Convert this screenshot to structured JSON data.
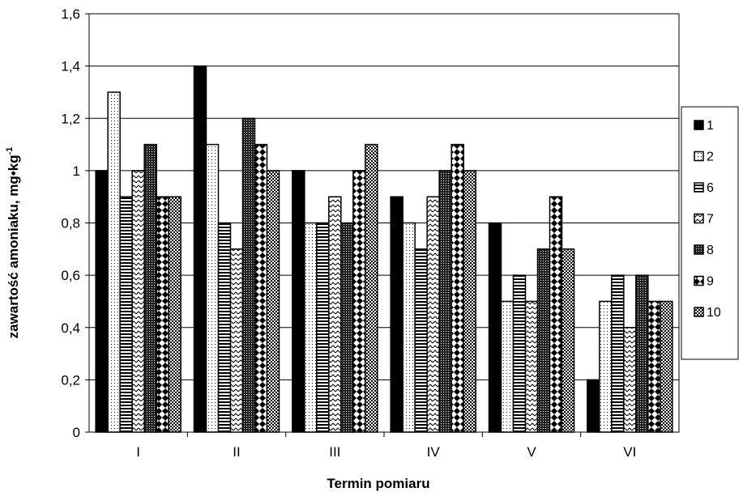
{
  "chart_data": {
    "type": "bar",
    "title": "",
    "xlabel": "Termin pomiaru",
    "ylabel": "zawartość amoniaku, mg•kg",
    "ylabel_superscript": "-1",
    "categories": [
      "I",
      "II",
      "III",
      "IV",
      "V",
      "VI"
    ],
    "y_ticks": [
      "0",
      "0,2",
      "0,4",
      "0,6",
      "0,8",
      "1",
      "1,2",
      "1,4",
      "1,6"
    ],
    "ylim": [
      0,
      1.6
    ],
    "grid": true,
    "legend_position": "right",
    "series": [
      {
        "name": "1",
        "pattern": "solid-black",
        "values": [
          1.0,
          1.4,
          1.0,
          0.9,
          0.8,
          0.2
        ]
      },
      {
        "name": "2",
        "pattern": "dots",
        "values": [
          1.3,
          1.1,
          0.8,
          0.8,
          0.5,
          0.5
        ]
      },
      {
        "name": "6",
        "pattern": "horizontal-lines",
        "values": [
          0.9,
          0.8,
          0.8,
          0.7,
          0.6,
          0.6
        ]
      },
      {
        "name": "7",
        "pattern": "zigzag",
        "values": [
          1.0,
          0.7,
          0.9,
          0.9,
          0.5,
          0.4
        ]
      },
      {
        "name": "8",
        "pattern": "dense-grid",
        "values": [
          1.1,
          1.2,
          0.8,
          1.0,
          0.7,
          0.6
        ]
      },
      {
        "name": "9",
        "pattern": "diamonds",
        "values": [
          0.9,
          1.1,
          1.0,
          1.1,
          0.9,
          0.5
        ]
      },
      {
        "name": "10",
        "pattern": "checker",
        "values": [
          0.9,
          1.0,
          1.1,
          1.0,
          0.7,
          0.5
        ]
      }
    ]
  }
}
